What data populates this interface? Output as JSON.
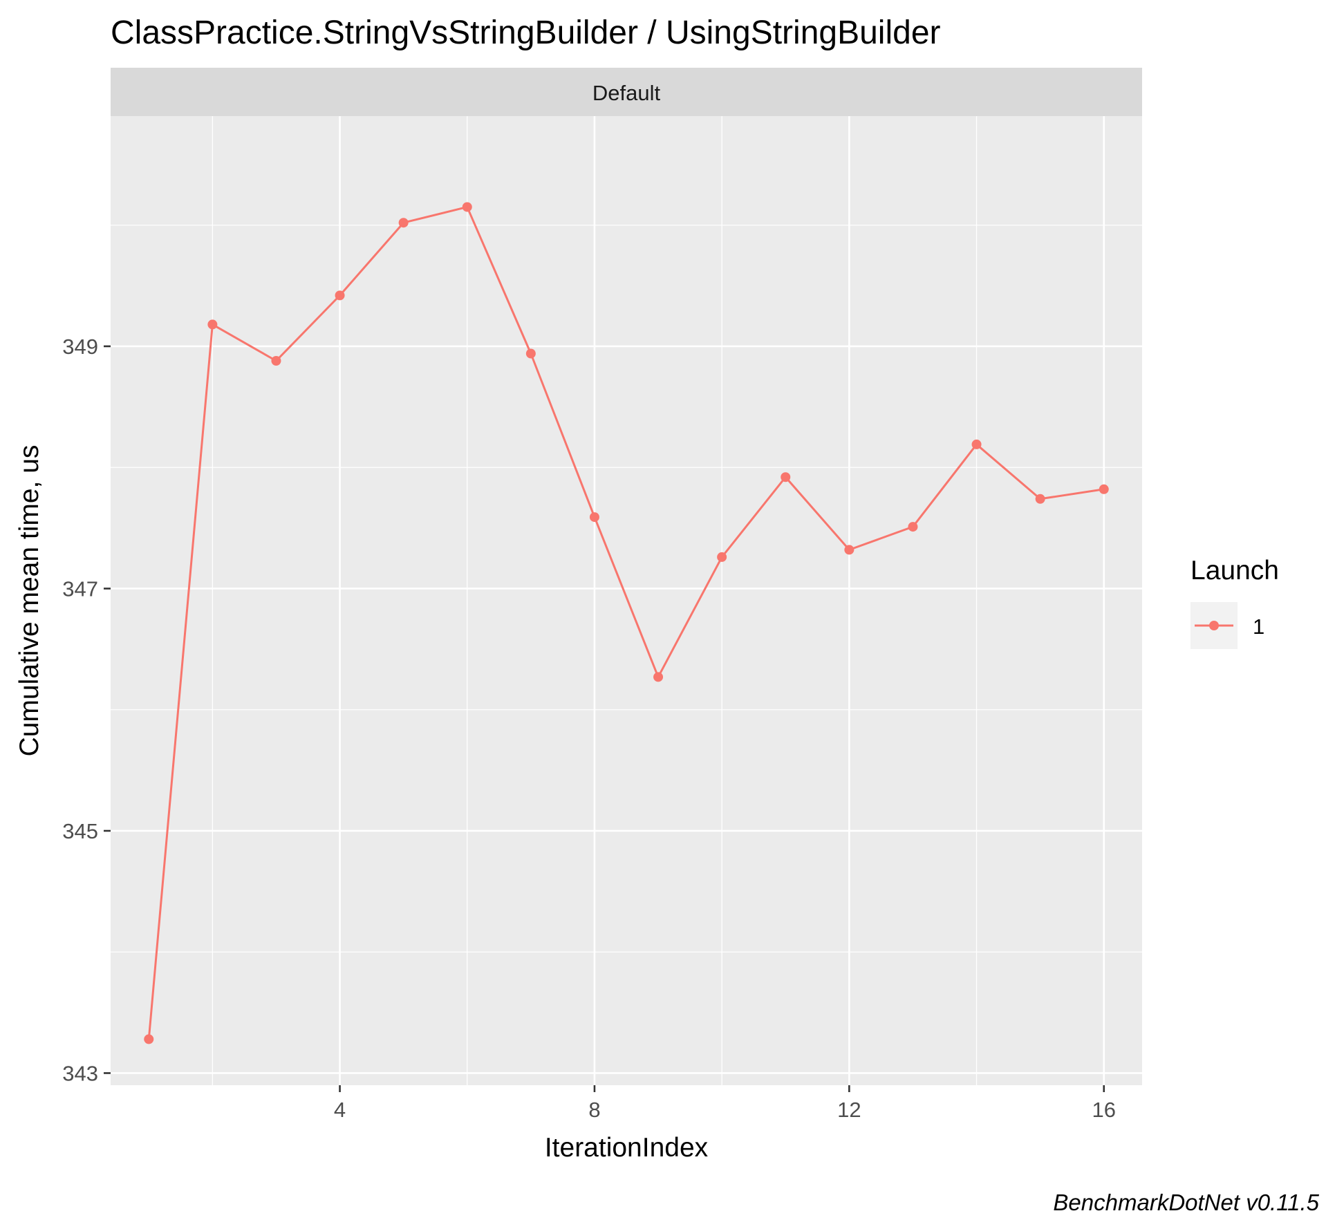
{
  "chart_data": {
    "type": "line",
    "title": "ClassPractice.StringVsStringBuilder / UsingStringBuilder",
    "facet_label": "Default",
    "xlabel": "IterationIndex",
    "ylabel": "Cumulative mean time, us",
    "xlim": [
      0.4,
      16.6
    ],
    "ylim": [
      342.9,
      350.9
    ],
    "x_ticks": [
      4,
      8,
      12,
      16
    ],
    "x_minor_ticks": [
      2,
      6,
      10,
      14
    ],
    "y_ticks": [
      343,
      345,
      347,
      349
    ],
    "y_minor_ticks": [
      344,
      346,
      348,
      350
    ],
    "x_tick_labels": [
      "4",
      "8",
      "12",
      "16"
    ],
    "y_tick_labels": [
      "343",
      "345",
      "347",
      "349"
    ],
    "grid": true,
    "legend": {
      "title": "Launch",
      "position": "right"
    },
    "series": [
      {
        "name": "1",
        "color": "#F8766D",
        "x": [
          1,
          2,
          3,
          4,
          5,
          6,
          7,
          8,
          9,
          10,
          11,
          12,
          13,
          14,
          15,
          16
        ],
        "y": [
          343.28,
          349.18,
          348.88,
          349.42,
          350.02,
          350.15,
          348.94,
          347.59,
          346.27,
          347.26,
          347.92,
          347.32,
          347.51,
          348.19,
          347.74,
          347.82
        ]
      }
    ],
    "caption": "BenchmarkDotNet v0.11.5"
  },
  "colors": {
    "panel_background": "#EBEBEB",
    "strip_background": "#D9D9D9",
    "grid_line": "#FFFFFF",
    "series_line": "#F8766D"
  }
}
